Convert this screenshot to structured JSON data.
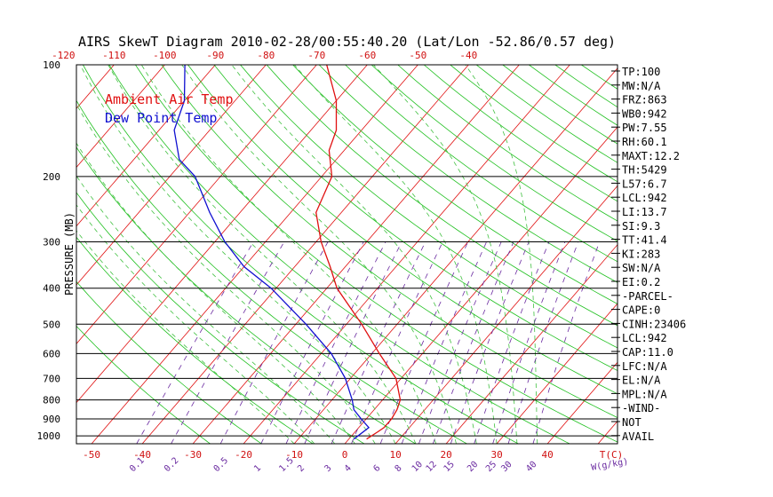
{
  "chart_data": {
    "type": "line",
    "title": "AIRS SkewT Diagram 2010-02-28/00:55:40.20 (Lat/Lon -52.86/0.57 deg)",
    "ylabel": "PRESSURE (MB)",
    "xlabel_bottom": "T(C)",
    "xlabel_mixing": "W(g/kg)",
    "y_scale": "log",
    "ylim": [
      1050,
      100
    ],
    "xlim_bottom": [
      -53,
      54
    ],
    "pressure_ticks": [
      100,
      200,
      300,
      400,
      500,
      600,
      700,
      800,
      900,
      1000
    ],
    "temp_ticks_bottom": [
      -50,
      -40,
      -30,
      -20,
      -10,
      0,
      10,
      20,
      30,
      40
    ],
    "temp_ticks_top": [
      -120,
      -110,
      -100,
      -90,
      -80,
      -70,
      -60,
      -50,
      -40
    ],
    "mixing_ratio_ticks": [
      "0.1",
      "0.2",
      "0.5",
      "1",
      "1.5",
      "2",
      "3",
      "4",
      "6",
      "8",
      "10",
      "12",
      "15",
      "20",
      "25",
      "30",
      "40"
    ],
    "legend": [
      {
        "name": "Ambient Air Temp",
        "color": "#e01010"
      },
      {
        "name": "Dew Point Temp",
        "color": "#1010d0"
      }
    ],
    "series": [
      {
        "name": "Ambient Air Temp",
        "color": "#e01010",
        "points": [
          {
            "p": 1020,
            "t": 3.5
          },
          {
            "p": 975,
            "t": 4.5
          },
          {
            "p": 950,
            "t": 5
          },
          {
            "p": 900,
            "t": 5
          },
          {
            "p": 850,
            "t": 4.5
          },
          {
            "p": 800,
            "t": 3.5
          },
          {
            "p": 700,
            "t": -1
          },
          {
            "p": 600,
            "t": -8.5
          },
          {
            "p": 500,
            "t": -17
          },
          {
            "p": 400,
            "t": -28
          },
          {
            "p": 350,
            "t": -33
          },
          {
            "p": 300,
            "t": -39
          },
          {
            "p": 250,
            "t": -45
          },
          {
            "p": 200,
            "t": -48
          },
          {
            "p": 170,
            "t": -53
          },
          {
            "p": 150,
            "t": -55
          },
          {
            "p": 125,
            "t": -60
          },
          {
            "p": 100,
            "t": -68
          }
        ]
      },
      {
        "name": "Dew Point Temp",
        "color": "#1010d0",
        "points": [
          {
            "p": 1020,
            "t": 1
          },
          {
            "p": 950,
            "t": 2
          },
          {
            "p": 900,
            "t": -1
          },
          {
            "p": 850,
            "t": -4
          },
          {
            "p": 800,
            "t": -6
          },
          {
            "p": 700,
            "t": -11
          },
          {
            "p": 600,
            "t": -18
          },
          {
            "p": 500,
            "t": -28
          },
          {
            "p": 400,
            "t": -41
          },
          {
            "p": 350,
            "t": -50
          },
          {
            "p": 300,
            "t": -58
          },
          {
            "p": 250,
            "t": -66
          },
          {
            "p": 200,
            "t": -75
          },
          {
            "p": 180,
            "t": -81
          },
          {
            "p": 150,
            "t": -87
          },
          {
            "p": 125,
            "t": -90
          },
          {
            "p": 100,
            "t": -96
          }
        ]
      }
    ]
  },
  "indices": [
    "TP:100",
    "MW:N/A",
    "FRZ:863",
    "WB0:942",
    "PW:7.55",
    "RH:60.1",
    "MAXT:12.2",
    "TH:5429",
    "L57:6.7",
    "LCL:942",
    "LI:13.7",
    "SI:9.3",
    "TT:41.4",
    "KI:283",
    "SW:N/A",
    "EI:0.2",
    "-PARCEL-",
    "CAPE:0",
    "CINH:23406",
    "LCL:942",
    "CAP:11.0",
    "LFC:N/A",
    "EL:N/A",
    "MPL:N/A",
    "-WIND-",
    "NOT",
    "AVAIL"
  ],
  "colors": {
    "isotherm": "#e01010",
    "dry_adiabat": "#20c020",
    "moist_adiabat": "#40c040",
    "mixing_ratio": "#6a2aa0",
    "isobar": "#000000",
    "axis_text": "#000000",
    "tick_text": "#d01010"
  }
}
